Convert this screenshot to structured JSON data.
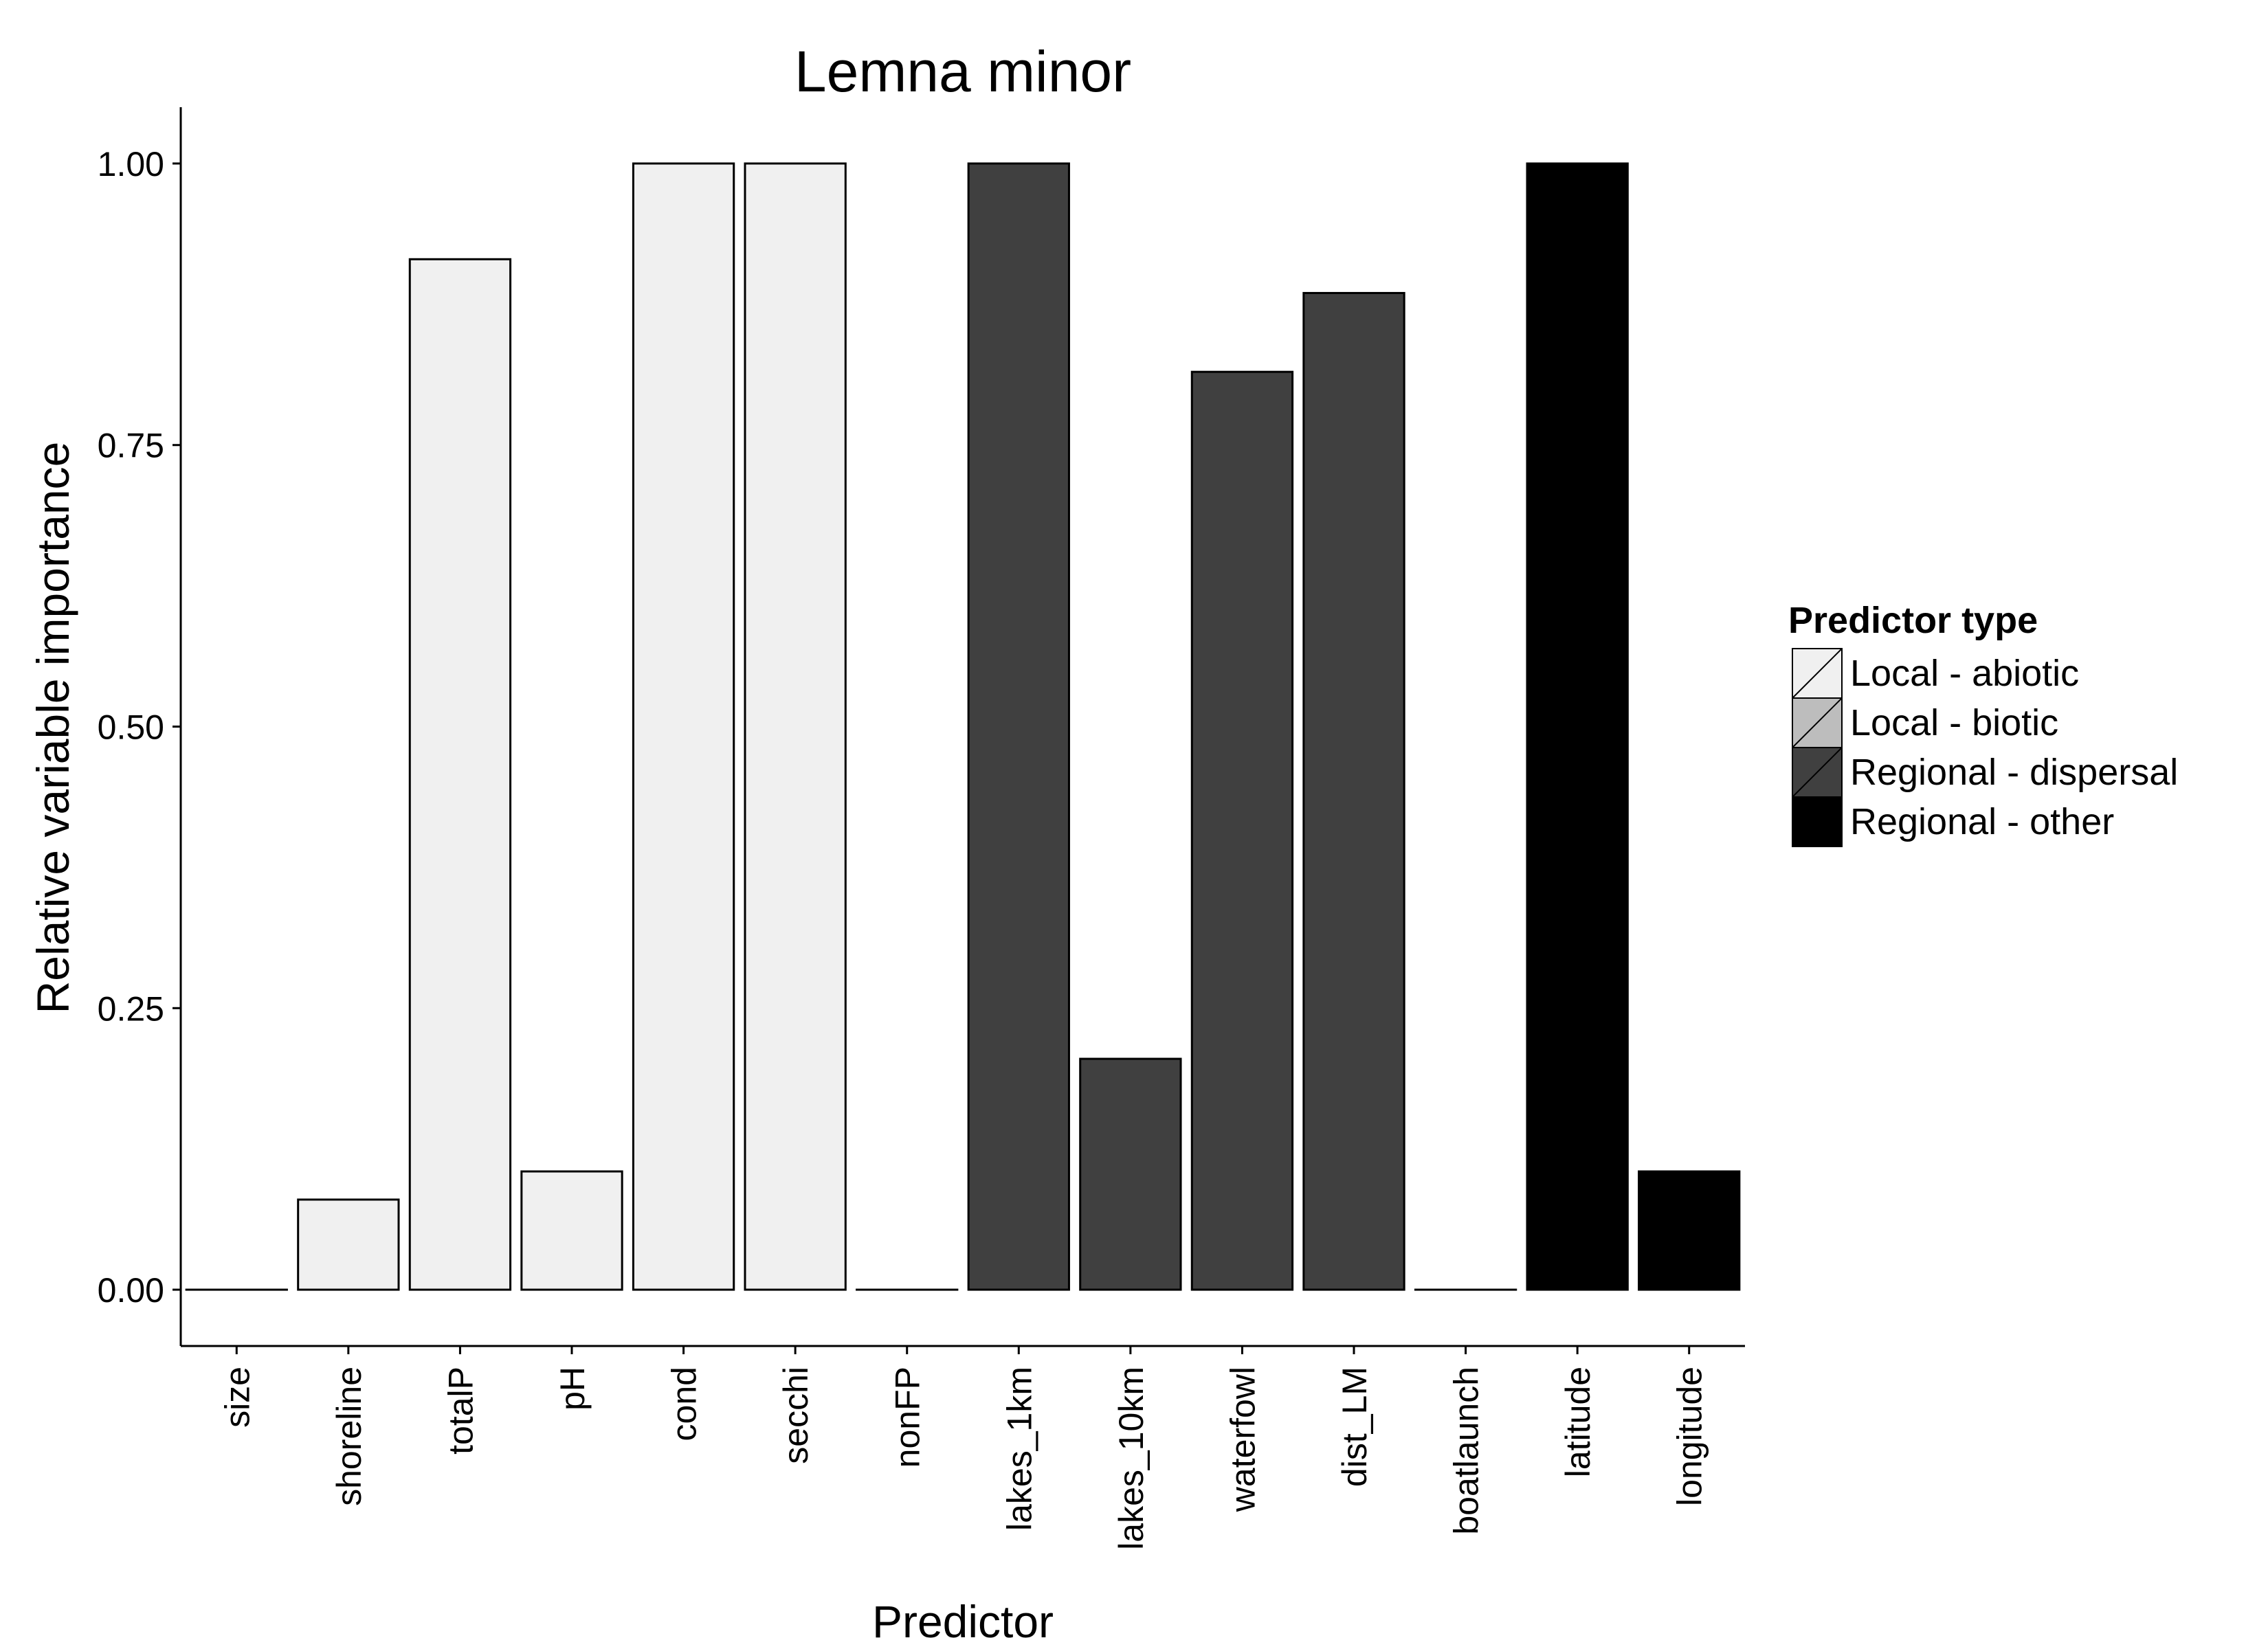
{
  "chart_data": {
    "type": "bar",
    "title": "Lemna minor",
    "xlabel": "Predictor",
    "ylabel": "Relative variable importance",
    "ylim": [
      -0.05,
      1.05
    ],
    "yticks": [
      "0.00",
      "0.25",
      "0.50",
      "0.75",
      "1.00"
    ],
    "ytick_values": [
      0,
      0.25,
      0.5,
      0.75,
      1.0
    ],
    "categories": [
      "size",
      "shoreline",
      "totalP",
      "pH",
      "cond",
      "secchi",
      "nonFP",
      "lakes_1km",
      "lakes_10km",
      "waterfowl",
      "dist_LM",
      "boatlaunch",
      "latitude",
      "longitude"
    ],
    "values": [
      0.0,
      0.08,
      0.915,
      0.105,
      1.0,
      1.0,
      0.0,
      1.0,
      0.205,
      0.815,
      0.885,
      0.0,
      1.0,
      0.105
    ],
    "groups": [
      "Local - abiotic",
      "Local - abiotic",
      "Local - abiotic",
      "Local - abiotic",
      "Local - abiotic",
      "Local - abiotic",
      "Local - abiotic",
      "Regional - dispersal",
      "Regional - dispersal",
      "Regional - dispersal",
      "Regional - dispersal",
      "Regional - dispersal",
      "Regional - other",
      "Regional - other"
    ],
    "legend": {
      "title": "Predictor type",
      "placement": "right",
      "entries": [
        {
          "label": "Local - abiotic",
          "color": "#f0f0f0"
        },
        {
          "label": "Local - biotic",
          "color": "#bdbdbd"
        },
        {
          "label": "Regional - dispersal",
          "color": "#404040"
        },
        {
          "label": "Regional - other",
          "color": "#000000"
        }
      ]
    },
    "grid": false
  }
}
